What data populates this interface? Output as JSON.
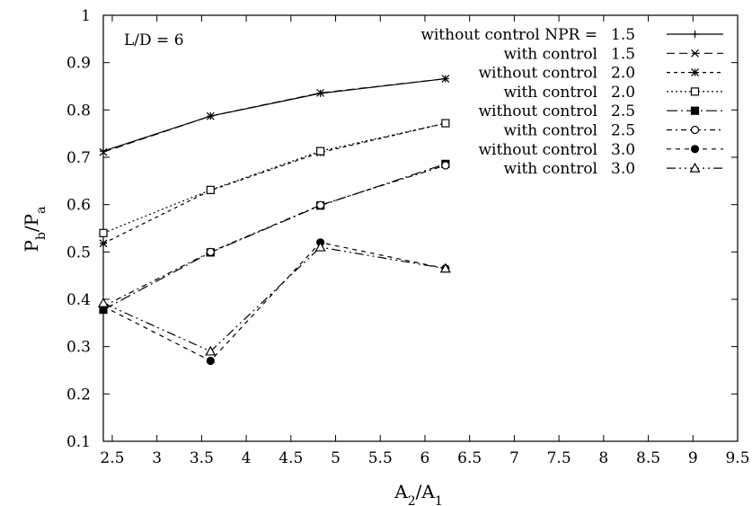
{
  "chart_data": {
    "type": "line",
    "title": "",
    "annotation": "L/D = 6",
    "xlabel": {
      "base": "A",
      "sub": "2",
      "sep": "/A",
      "sub2": "1"
    },
    "ylabel": {
      "base": "P",
      "sub": "b",
      "sep": "/P",
      "sub2": "a"
    },
    "xlim": [
      2.4,
      9.5
    ],
    "ylim": [
      0.1,
      1.0
    ],
    "xticks": [
      2.5,
      3,
      3.5,
      4,
      4.5,
      5,
      5.5,
      6,
      6.5,
      7,
      7.5,
      8,
      8.5,
      9,
      9.5
    ],
    "xtick_labels": [
      "2.5",
      "3",
      "3.5",
      "4",
      "4.5",
      "5",
      "5.5",
      "6",
      "6.5",
      "7",
      "7.5",
      "8",
      "8.5",
      "9",
      "9.5"
    ],
    "yticks": [
      0.1,
      0.2,
      0.3,
      0.4,
      0.5,
      0.6,
      0.7,
      0.8,
      0.9,
      1.0
    ],
    "ytick_labels": [
      "0.1",
      "0.2",
      "0.3",
      "0.4",
      "0.5",
      "0.6",
      "0.7",
      "0.8",
      "0.9",
      "1"
    ],
    "grid": false,
    "legend_position": "top-right",
    "x": [
      2.4,
      3.6,
      4.83,
      6.23
    ],
    "series": [
      {
        "name": "without control NPR =",
        "npr": "1.5",
        "marker": "plus",
        "dash": "",
        "values": [
          0.713,
          0.787,
          0.835,
          0.866
        ]
      },
      {
        "name": "with control",
        "npr": "1.5",
        "marker": "cross",
        "dash": "9,5",
        "values": [
          0.711,
          0.787,
          0.836,
          0.866
        ]
      },
      {
        "name": "without control",
        "npr": "2.0",
        "marker": "star",
        "dash": "4,4",
        "values": [
          0.518,
          0.63,
          0.71,
          0.772
        ]
      },
      {
        "name": "with control",
        "npr": "2.0",
        "marker": "square-open",
        "dash": "2,3",
        "values": [
          0.54,
          0.631,
          0.713,
          0.772
        ]
      },
      {
        "name": "without control",
        "npr": "2.5",
        "marker": "square-filled",
        "dash": "12,4,2,4",
        "values": [
          0.378,
          0.499,
          0.598,
          0.686
        ]
      },
      {
        "name": "with control",
        "npr": "2.5",
        "marker": "circle-open",
        "dash": "6,4,2,4",
        "values": [
          0.385,
          0.5,
          0.599,
          0.683
        ]
      },
      {
        "name": "without control",
        "npr": "3.0",
        "marker": "circle-filled",
        "dash": "5,5",
        "values": [
          0.385,
          0.27,
          0.52,
          0.465
        ]
      },
      {
        "name": "with control",
        "npr": "3.0",
        "marker": "triangle-open",
        "dash": "10,4,2,4,2,4",
        "values": [
          0.392,
          0.29,
          0.51,
          0.465
        ]
      }
    ]
  }
}
